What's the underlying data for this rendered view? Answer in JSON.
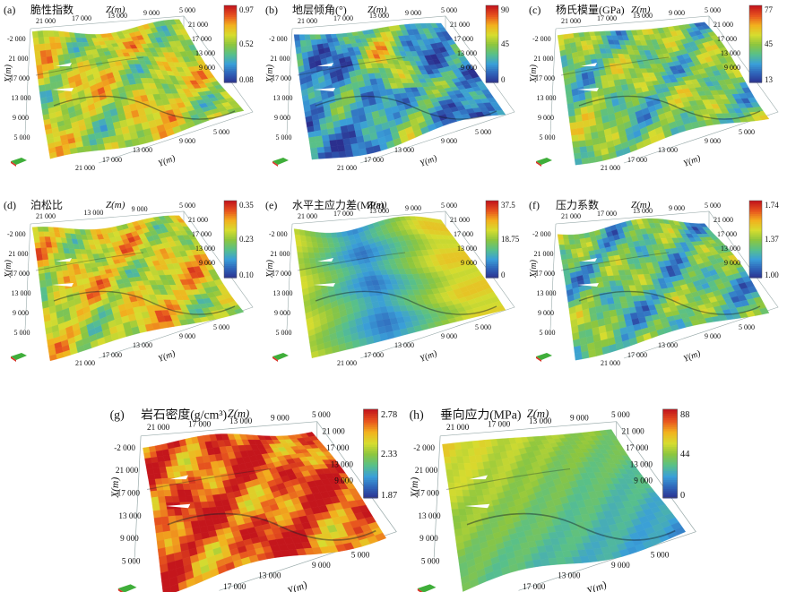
{
  "figure": {
    "colormap": [
      "#2b2f8e",
      "#2f62b8",
      "#3a9fd8",
      "#58c08a",
      "#8cc63f",
      "#d6dc2f",
      "#f2b21e",
      "#e8561e",
      "#c4161c"
    ]
  },
  "chart_data": [
    {
      "type": "heatmap",
      "panel": "(a)",
      "title": "脆性指数",
      "colorbar": {
        "min": 0.08,
        "mid": 0.52,
        "max": 0.97,
        "tick_labels": [
          "0.97",
          "0.52",
          "0.08"
        ]
      },
      "axes": {
        "z_label": "Z(m)",
        "x_label": "X(m)",
        "y_label": "Y(m)",
        "z_ticks": [
          "21 000",
          "17 000",
          "13 000",
          "9 000",
          "5 000"
        ],
        "x_ticks": [
          "-2 000",
          "21 000",
          "17 000",
          "13 000",
          "9 000",
          "5 000"
        ],
        "y_ticks": [
          "21 000",
          "17 000",
          "13 000",
          "9 000",
          "5 000"
        ],
        "right_z_ticks": [
          "21 000",
          "17 000",
          "13 000",
          "9 000"
        ]
      },
      "surface_level": 0.58,
      "pattern": "mottled green-yellow with blue patches"
    },
    {
      "type": "heatmap",
      "panel": "(b)",
      "title": "地层倾角(°)",
      "colorbar": {
        "min": 0,
        "mid": 45,
        "max": 90,
        "tick_labels": [
          "90",
          "45",
          "0"
        ]
      },
      "axes": {
        "z_label": "Z(m)",
        "x_label": "X(m)",
        "y_label": "Y(m)",
        "z_ticks": [
          "21 000",
          "17 000",
          "13 000",
          "9 000",
          "5 000"
        ],
        "x_ticks": [
          "-2 000",
          "21 000",
          "17 000",
          "13 000",
          "9 000",
          "5 000"
        ],
        "y_ticks": [
          "21 000",
          "17 000",
          "13 000",
          "9 000",
          "5 000"
        ],
        "right_z_ticks": [
          "21 000",
          "17 000",
          "13 000",
          "9 000"
        ]
      },
      "surface_level": 0.22,
      "pattern": "mostly dark blue with green ridge bands"
    },
    {
      "type": "heatmap",
      "panel": "(c)",
      "title": "杨氏模量(GPa)",
      "colorbar": {
        "min": 13,
        "mid": 45,
        "max": 77,
        "tick_labels": [
          "77",
          "45",
          "13"
        ]
      },
      "axes": {
        "z_label": "Z(m)",
        "x_label": "X(m)",
        "y_label": "Y(m)",
        "z_ticks": [
          "21 000",
          "17 000",
          "13 000",
          "9 000",
          "5 000"
        ],
        "x_ticks": [
          "-2 000",
          "21 000",
          "17 000",
          "13 000",
          "9 000",
          "5 000"
        ],
        "y_ticks": [
          "21 000",
          "17 000",
          "13 000",
          "9 000",
          "5 000"
        ],
        "right_z_ticks": [
          "21 000",
          "17 000",
          "13 000",
          "9 000"
        ]
      },
      "surface_level": 0.45,
      "pattern": "green with large blue regions"
    },
    {
      "type": "heatmap",
      "panel": "(d)",
      "title": "泊松比",
      "colorbar": {
        "min": 0.1,
        "mid": 0.23,
        "max": 0.35,
        "tick_labels": [
          "0.35",
          "0.23",
          "0.10"
        ]
      },
      "axes": {
        "z_label": "Z(m)",
        "x_label": "X(m)",
        "y_label": "Y(m)",
        "z_ticks": [
          "21 000",
          "13 000",
          "9 000",
          "5 000"
        ],
        "x_ticks": [
          "-2 000",
          "21 000",
          "17 000",
          "13 000",
          "9 000",
          "5 000"
        ],
        "y_ticks": [
          "21 000",
          "17 000",
          "13 000",
          "9 000",
          "5 000"
        ],
        "right_z_ticks": [
          "21 000",
          "17 000",
          "13 000",
          "9 000"
        ]
      },
      "surface_level": 0.62,
      "pattern": "green with orange-red patches"
    },
    {
      "type": "heatmap",
      "panel": "(e)",
      "title": "水平主应力差(MPa)",
      "colorbar": {
        "min": 0,
        "mid": 18.75,
        "max": 37.5,
        "tick_labels": [
          "37.5",
          "18.75",
          "0"
        ]
      },
      "axes": {
        "z_label": "Z(m)",
        "x_label": "X(m)",
        "y_label": "Y(m)",
        "z_ticks": [
          "21 000",
          "17 000",
          "13 000",
          "9 000",
          "5 000"
        ],
        "x_ticks": [
          "-2 000",
          "21 000",
          "17 000",
          "13 000",
          "9 000",
          "5 000"
        ],
        "y_ticks": [
          "21 000",
          "17 000",
          "13 000",
          "9 000",
          "5 000"
        ],
        "right_z_ticks": [
          "21 000",
          "17 000",
          "13 000",
          "9 000"
        ]
      },
      "surface_level": 0.35,
      "pattern": "blue center band, green flanks"
    },
    {
      "type": "heatmap",
      "panel": "(f)",
      "title": "压力系数",
      "colorbar": {
        "min": 1.0,
        "mid": 1.37,
        "max": 1.74,
        "tick_labels": [
          "1.74",
          "1.37",
          "1.00"
        ]
      },
      "axes": {
        "z_label": "Z(m)",
        "x_label": "X(m)",
        "y_label": "Y(m)",
        "z_ticks": [
          "21 000",
          "17 000",
          "13 000",
          "9 000",
          "5 000"
        ],
        "x_ticks": [
          "-2 000",
          "21 000",
          "17 000",
          "13 000",
          "9 000",
          "5 000"
        ],
        "y_ticks": [
          "21 000",
          "17 000",
          "13 000",
          "9 000",
          "5 000"
        ],
        "right_z_ticks": [
          "21 000",
          "17 000",
          "13 000",
          "9 000"
        ]
      },
      "surface_level": 0.4,
      "pattern": "green with dark blue blobs, some yellow"
    },
    {
      "type": "heatmap",
      "panel": "(g)",
      "title": "岩石密度(g/cm³)",
      "colorbar": {
        "min": 1.87,
        "mid": 2.33,
        "max": 2.78,
        "tick_labels": [
          "2.78",
          "2.33",
          "1.87"
        ]
      },
      "axes": {
        "z_label": "Z(m)",
        "x_label": "X(m)",
        "y_label": "Y(m)",
        "z_ticks": [
          "21 000",
          "17 000",
          "13 000",
          "9 000",
          "5 000"
        ],
        "x_ticks": [
          "-2 000",
          "21 000",
          "17 000",
          "13 000",
          "9 000",
          "5 000"
        ],
        "y_ticks": [
          "21 000",
          "17 000",
          "13 000",
          "9 000",
          "5 000"
        ],
        "right_z_ticks": [
          "21 000",
          "17 000",
          "13 000",
          "9 000"
        ]
      },
      "surface_level": 0.88,
      "pattern": "mostly red-orange with yellow"
    },
    {
      "type": "heatmap",
      "panel": "(h)",
      "title": "垂向应力(MPa)",
      "colorbar": {
        "min": 0,
        "mid": 44,
        "max": 88,
        "tick_labels": [
          "88",
          "44",
          "0"
        ]
      },
      "axes": {
        "z_label": "Z(m)",
        "x_label": "X(m)",
        "y_label": "Y(m)",
        "z_ticks": [
          "21 000",
          "17 000",
          "13 000",
          "9 000",
          "5 000"
        ],
        "x_ticks": [
          "-2 000",
          "21 000",
          "17 000",
          "13 000",
          "9 000",
          "5 000"
        ],
        "y_ticks": [
          "21 000",
          "17 000",
          "13 000",
          "9 000",
          "5 000"
        ],
        "right_z_ticks": [
          "21 000",
          "17 000",
          "13 000",
          "9 000"
        ]
      },
      "surface_level": 0.42,
      "pattern": "smooth green fading to cyan-blue"
    }
  ]
}
